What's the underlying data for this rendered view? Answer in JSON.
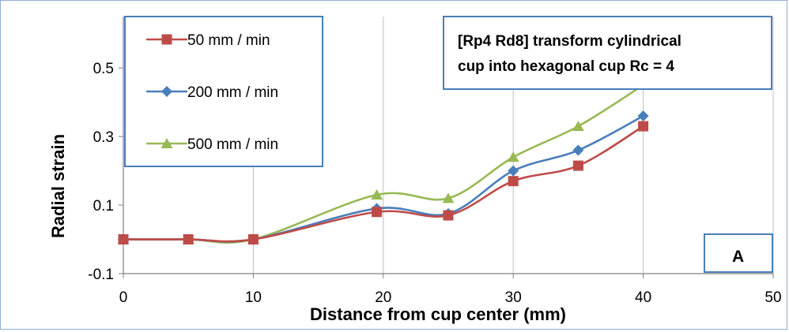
{
  "chart_data": {
    "type": "line",
    "title": "",
    "xlabel": "Distance from cup center (mm)",
    "ylabel": "Radial strain",
    "xlim": [
      0,
      50
    ],
    "ylim": [
      -0.1,
      0.65
    ],
    "xticks": [
      0,
      10,
      20,
      30,
      40,
      50
    ],
    "yticks": [
      -0.1,
      0.1,
      0.3,
      0.5
    ],
    "xtick_labels": [
      "0",
      "10",
      "20",
      "30",
      "40",
      "50"
    ],
    "ytick_labels": [
      "-0.1",
      "0.1",
      "0.3",
      "0.5"
    ],
    "grid": "vertical",
    "legend_position": "top-left",
    "series": [
      {
        "name": "50 mm / min",
        "color": "#be4b48",
        "marker": "square",
        "x": [
          0,
          5,
          10,
          19.5,
          25,
          30,
          35,
          40
        ],
        "y": [
          0.0,
          0.0,
          0.0,
          0.08,
          0.07,
          0.17,
          0.215,
          0.33
        ]
      },
      {
        "name": "200 mm / min",
        "color": "#4a7ebb",
        "marker": "diamond",
        "x": [
          0,
          5,
          10,
          19.5,
          25,
          30,
          35,
          40
        ],
        "y": [
          0.0,
          0.0,
          0.0,
          0.09,
          0.075,
          0.2,
          0.26,
          0.36
        ]
      },
      {
        "name": "500 mm / min",
        "color": "#98b954",
        "marker": "triangle",
        "x": [
          0,
          5,
          10,
          19.5,
          25,
          30,
          35,
          40
        ],
        "y": [
          0.0,
          0.0,
          0.0,
          0.13,
          0.12,
          0.24,
          0.33,
          0.45
        ]
      }
    ],
    "annotations": {
      "info_line1": "[Rp4 Rd8] transform cylindrical",
      "info_line2": "cup into hexagonal cup Rc = 4",
      "panel_label": "A"
    }
  }
}
